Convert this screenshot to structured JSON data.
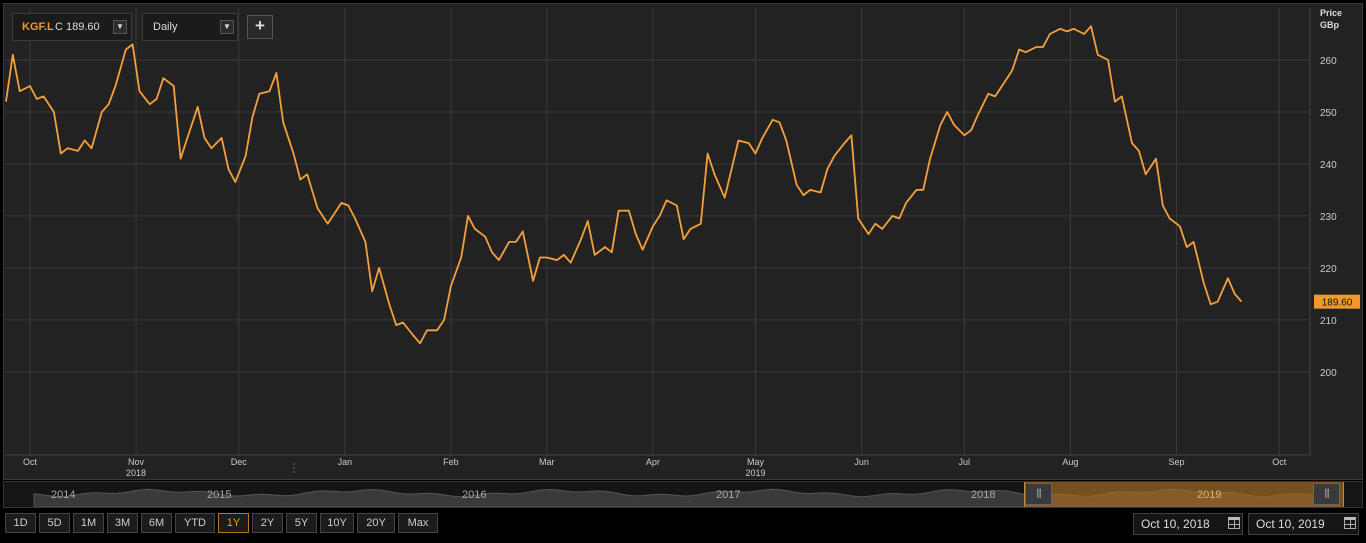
{
  "toolbar": {
    "symbol": "KGF.L",
    "close_label": "C 189.60",
    "interval": "Daily",
    "add_label": "+"
  },
  "axis": {
    "title_line1": "Price",
    "title_line2": "GBp"
  },
  "last_price_label": "189.60",
  "navigator": {
    "years": [
      "2014",
      "2015",
      "2016",
      "2017",
      "2018",
      "2019"
    ],
    "handle_glyph": "|||"
  },
  "range_buttons": [
    {
      "label": "1D",
      "active": false
    },
    {
      "label": "5D",
      "active": false
    },
    {
      "label": "1M",
      "active": false
    },
    {
      "label": "3M",
      "active": false
    },
    {
      "label": "6M",
      "active": false
    },
    {
      "label": "YTD",
      "active": false
    },
    {
      "label": "1Y",
      "active": true
    },
    {
      "label": "2Y",
      "active": false
    },
    {
      "label": "5Y",
      "active": false
    },
    {
      "label": "10Y",
      "active": false
    },
    {
      "label": "20Y",
      "active": false
    },
    {
      "label": "Max",
      "active": false
    }
  ],
  "date_range": {
    "from": "Oct 10, 2018",
    "to": "Oct 10, 2019"
  },
  "colors": {
    "line": "#f5a03b",
    "background": "#222222",
    "grid": "#3a3a3a",
    "accent": "#f09a2a"
  },
  "chart_data": {
    "type": "line",
    "title": "",
    "xlabel": "",
    "ylabel": "Price GBp",
    "ylim": [
      184,
      270
    ],
    "yticks": [
      200,
      210,
      220,
      230,
      240,
      250,
      260
    ],
    "x_ticks": [
      {
        "date": "2018-10-01",
        "label": "Oct",
        "year": ""
      },
      {
        "date": "2018-11-01",
        "label": "Nov",
        "year": "2018"
      },
      {
        "date": "2018-12-01",
        "label": "Dec",
        "year": ""
      },
      {
        "date": "2019-01-01",
        "label": "Jan",
        "year": ""
      },
      {
        "date": "2019-02-01",
        "label": "Feb",
        "year": ""
      },
      {
        "date": "2019-03-01",
        "label": "Mar",
        "year": ""
      },
      {
        "date": "2019-04-01",
        "label": "Apr",
        "year": ""
      },
      {
        "date": "2019-05-01",
        "label": "May",
        "year": "2019"
      },
      {
        "date": "2019-06-01",
        "label": "Jun",
        "year": ""
      },
      {
        "date": "2019-07-01",
        "label": "Jul",
        "year": ""
      },
      {
        "date": "2019-08-01",
        "label": "Aug",
        "year": ""
      },
      {
        "date": "2019-09-01",
        "label": "Sep",
        "year": ""
      },
      {
        "date": "2019-10-01",
        "label": "Oct",
        "year": ""
      }
    ],
    "x_range": [
      "2018-09-24",
      "2019-10-10"
    ],
    "series": [
      {
        "name": "",
        "points": [
          [
            "2018-09-24",
            252
          ],
          [
            "2018-09-26",
            261
          ],
          [
            "2018-09-28",
            254
          ],
          [
            "2018-10-01",
            255
          ],
          [
            "2018-10-03",
            252.5
          ],
          [
            "2018-10-05",
            253
          ],
          [
            "2018-10-08",
            250
          ],
          [
            "2018-10-10",
            242
          ],
          [
            "2018-10-12",
            243
          ],
          [
            "2018-10-15",
            242.5
          ],
          [
            "2018-10-17",
            244.5
          ],
          [
            "2018-10-19",
            243
          ],
          [
            "2018-10-22",
            250
          ],
          [
            "2018-10-24",
            251.5
          ],
          [
            "2018-10-26",
            255
          ],
          [
            "2018-10-29",
            262
          ],
          [
            "2018-10-31",
            263
          ],
          [
            "2018-11-02",
            254
          ],
          [
            "2018-11-05",
            251.5
          ],
          [
            "2018-11-07",
            252.5
          ],
          [
            "2018-11-09",
            256.5
          ],
          [
            "2018-11-12",
            255
          ],
          [
            "2018-11-14",
            241
          ],
          [
            "2018-11-16",
            245
          ],
          [
            "2018-11-19",
            251
          ],
          [
            "2018-11-21",
            245
          ],
          [
            "2018-11-23",
            243
          ],
          [
            "2018-11-26",
            245
          ],
          [
            "2018-11-28",
            239
          ],
          [
            "2018-11-30",
            236.5
          ],
          [
            "2018-12-03",
            241.5
          ],
          [
            "2018-12-05",
            249
          ],
          [
            "2018-12-07",
            253.5
          ],
          [
            "2018-12-10",
            254
          ],
          [
            "2018-12-12",
            257.5
          ],
          [
            "2018-12-14",
            248
          ],
          [
            "2018-12-17",
            242
          ],
          [
            "2018-12-19",
            237
          ],
          [
            "2018-12-21",
            238
          ],
          [
            "2018-12-24",
            231.5
          ],
          [
            "2018-12-27",
            228.5
          ],
          [
            "2018-12-31",
            232.5
          ],
          [
            "2019-01-02",
            232
          ],
          [
            "2019-01-04",
            229.5
          ],
          [
            "2019-01-07",
            225
          ],
          [
            "2019-01-09",
            215.5
          ],
          [
            "2019-01-11",
            220
          ],
          [
            "2019-01-14",
            213
          ],
          [
            "2019-01-16",
            209
          ],
          [
            "2019-01-18",
            209.5
          ],
          [
            "2019-01-21",
            207
          ],
          [
            "2019-01-23",
            205.5
          ],
          [
            "2019-01-25",
            208
          ],
          [
            "2019-01-28",
            208
          ],
          [
            "2019-01-30",
            210
          ],
          [
            "2019-02-01",
            216.5
          ],
          [
            "2019-02-04",
            222
          ],
          [
            "2019-02-06",
            230
          ],
          [
            "2019-02-08",
            227.5
          ],
          [
            "2019-02-11",
            226
          ],
          [
            "2019-02-13",
            223
          ],
          [
            "2019-02-15",
            221.5
          ],
          [
            "2019-02-18",
            225
          ],
          [
            "2019-02-20",
            225
          ],
          [
            "2019-02-22",
            227
          ],
          [
            "2019-02-25",
            217.5
          ],
          [
            "2019-02-27",
            222
          ],
          [
            "2019-03-01",
            222
          ],
          [
            "2019-03-04",
            221.5
          ],
          [
            "2019-03-06",
            222.5
          ],
          [
            "2019-03-08",
            221
          ],
          [
            "2019-03-11",
            225.5
          ],
          [
            "2019-03-13",
            229
          ],
          [
            "2019-03-15",
            222.5
          ],
          [
            "2019-03-18",
            224
          ],
          [
            "2019-03-20",
            223
          ],
          [
            "2019-03-22",
            231
          ],
          [
            "2019-03-25",
            231
          ],
          [
            "2019-03-27",
            226.5
          ],
          [
            "2019-03-29",
            223.5
          ],
          [
            "2019-04-01",
            228
          ],
          [
            "2019-04-03",
            230
          ],
          [
            "2019-04-05",
            233
          ],
          [
            "2019-04-08",
            232
          ],
          [
            "2019-04-10",
            225.5
          ],
          [
            "2019-04-12",
            227.5
          ],
          [
            "2019-04-15",
            228.5
          ],
          [
            "2019-04-17",
            242
          ],
          [
            "2019-04-19",
            238
          ],
          [
            "2019-04-22",
            233.5
          ],
          [
            "2019-04-24",
            239
          ],
          [
            "2019-04-26",
            244.5
          ],
          [
            "2019-04-29",
            244
          ],
          [
            "2019-05-01",
            242
          ],
          [
            "2019-05-03",
            245
          ],
          [
            "2019-05-06",
            248.5
          ],
          [
            "2019-05-08",
            248
          ],
          [
            "2019-05-10",
            244.5
          ],
          [
            "2019-05-13",
            236
          ],
          [
            "2019-05-15",
            234
          ],
          [
            "2019-05-17",
            235
          ],
          [
            "2019-05-20",
            234.5
          ],
          [
            "2019-05-22",
            239
          ],
          [
            "2019-05-24",
            241.5
          ],
          [
            "2019-05-27",
            244
          ],
          [
            "2019-05-29",
            245.5
          ],
          [
            "2019-05-31",
            229.5
          ],
          [
            "2019-06-03",
            226.5
          ],
          [
            "2019-06-05",
            228.5
          ],
          [
            "2019-06-07",
            227.5
          ],
          [
            "2019-06-10",
            230
          ],
          [
            "2019-06-12",
            229.5
          ],
          [
            "2019-06-14",
            232.5
          ],
          [
            "2019-06-17",
            235
          ],
          [
            "2019-06-19",
            235
          ],
          [
            "2019-06-21",
            241
          ],
          [
            "2019-06-24",
            247.5
          ],
          [
            "2019-06-26",
            250
          ],
          [
            "2019-06-28",
            247.5
          ],
          [
            "2019-07-01",
            245.5
          ],
          [
            "2019-07-03",
            246.5
          ],
          [
            "2019-07-05",
            249.5
          ],
          [
            "2019-07-08",
            253.5
          ],
          [
            "2019-07-10",
            253
          ],
          [
            "2019-07-12",
            255
          ],
          [
            "2019-07-15",
            258
          ],
          [
            "2019-07-17",
            262
          ],
          [
            "2019-07-19",
            261.5
          ],
          [
            "2019-07-22",
            262.5
          ],
          [
            "2019-07-24",
            262.5
          ],
          [
            "2019-07-26",
            265
          ],
          [
            "2019-07-29",
            266
          ],
          [
            "2019-07-31",
            265.5
          ],
          [
            "2019-08-02",
            266
          ],
          [
            "2019-08-05",
            265
          ],
          [
            "2019-08-07",
            266.5
          ],
          [
            "2019-08-09",
            261
          ],
          [
            "2019-08-12",
            260
          ],
          [
            "2019-08-14",
            252
          ],
          [
            "2019-08-16",
            253
          ],
          [
            "2019-08-19",
            244
          ],
          [
            "2019-08-21",
            242.5
          ],
          [
            "2019-08-23",
            238
          ],
          [
            "2019-08-26",
            241
          ],
          [
            "2019-08-28",
            232
          ],
          [
            "2019-08-30",
            229.5
          ],
          [
            "2019-09-02",
            228
          ],
          [
            "2019-09-04",
            224
          ],
          [
            "2019-09-06",
            225
          ],
          [
            "2019-09-09",
            217
          ],
          [
            "2019-09-11",
            213
          ],
          [
            "2019-09-13",
            213.5
          ],
          [
            "2019-09-16",
            218
          ],
          [
            "2019-09-18",
            215
          ],
          [
            "2019-09-20",
            213.5
          ]
        ]
      }
    ]
  }
}
